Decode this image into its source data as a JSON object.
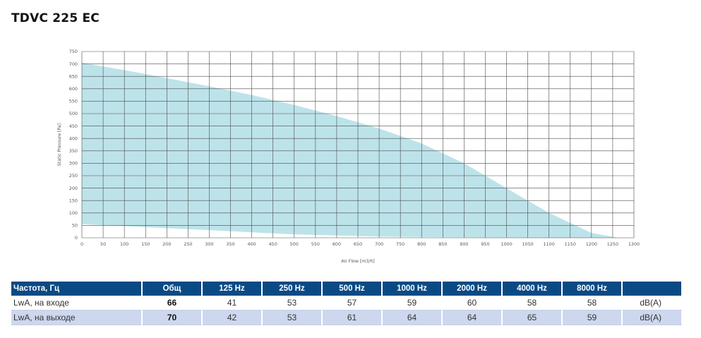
{
  "page": {
    "title": "TDVC 225 EC"
  },
  "chart_data": {
    "type": "area",
    "title": "",
    "xlabel": "Air Flow [m3/h]",
    "ylabel": "Static Pressure [Pa]",
    "xlim": [
      0,
      1300
    ],
    "ylim": [
      0,
      750
    ],
    "x_ticks": [
      0,
      50,
      100,
      150,
      200,
      250,
      300,
      350,
      400,
      450,
      500,
      550,
      600,
      650,
      700,
      750,
      800,
      850,
      900,
      950,
      1000,
      1050,
      1100,
      1150,
      1200,
      1250,
      1300
    ],
    "y_ticks": [
      0,
      50,
      100,
      150,
      200,
      250,
      300,
      350,
      400,
      450,
      500,
      550,
      600,
      650,
      700,
      750
    ],
    "grid": true,
    "fill_color": "#bde3ea",
    "series": [
      {
        "x": [
          0,
          100,
          200,
          300,
          400,
          500,
          600,
          700,
          800,
          900,
          1000,
          1100,
          1200,
          1263
        ],
        "y": [
          705,
          675,
          643,
          610,
          575,
          535,
          490,
          440,
          380,
          300,
          200,
          100,
          20,
          0
        ]
      },
      {
        "x": [
          0,
          100,
          200,
          300,
          400,
          500,
          600,
          700,
          800,
          900,
          1000,
          1100,
          1200,
          1263
        ],
        "y": [
          55,
          47,
          39,
          31,
          22,
          14,
          9,
          5,
          3,
          2,
          1,
          0,
          0,
          0
        ]
      }
    ]
  },
  "noise_table": {
    "headers": [
      "Частота, Гц",
      "Общ",
      "125 Hz",
      "250 Hz",
      "500 Hz",
      "1000 Hz",
      "2000 Hz",
      "4000 Hz",
      "8000 Hz",
      ""
    ],
    "rows": [
      {
        "label": "LwA, на входе",
        "total": "66",
        "values": [
          "41",
          "53",
          "57",
          "59",
          "60",
          "58",
          "58"
        ],
        "unit": "dB(A)"
      },
      {
        "label": "LwA, на выходе",
        "total": "70",
        "values": [
          "42",
          "53",
          "61",
          "64",
          "64",
          "65",
          "59"
        ],
        "unit": "dB(A)"
      }
    ]
  }
}
